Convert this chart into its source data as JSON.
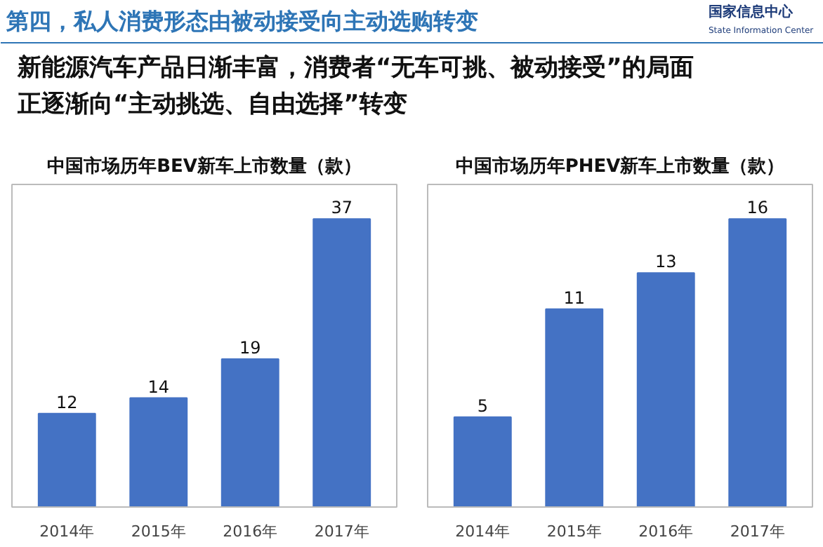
{
  "chart_data": [
    {
      "type": "other",
      "title": "第四，私人消费形态由被动接受向主动选购转变",
      "subtitle": "新能源汽车产品日渐丰富，消费者“无车可挑、被动接受”的局面正逐渐向“主动挑选、自由选择”转变",
      "annotations": [
        "国家信息中心",
        "State Information Center"
      ]
    },
    {
      "type": "bar",
      "title": "中国市场历年BEV新车上市数量（款）",
      "categories": [
        "2014年",
        "2015年",
        "2016年",
        "2017年"
      ],
      "values": [
        12,
        14,
        19,
        37
      ],
      "color": "#4472c4",
      "data_labels": true
    },
    {
      "type": "bar",
      "title": "中国市场历年PHEV新车上市数量（款）",
      "categories": [
        "2014年",
        "2015年",
        "2016年",
        "2017年"
      ],
      "values": [
        5,
        11,
        13,
        16
      ],
      "color": "#4472c4",
      "data_labels": true
    }
  ]
}
